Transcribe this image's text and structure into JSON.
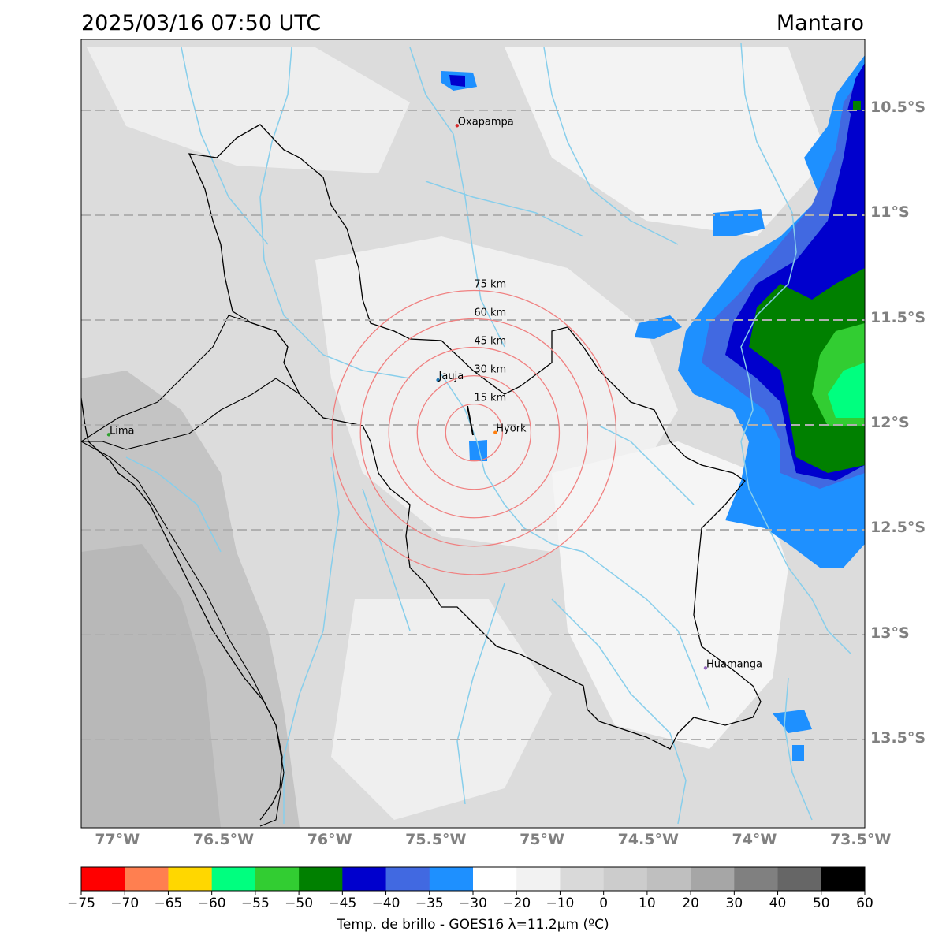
{
  "header": {
    "datetime": "2025/03/16 07:50 UTC",
    "region": "Mantaro"
  },
  "map": {
    "projection": "PlateCarree",
    "extent_lon": [
      -77.17,
      -73.48
    ],
    "extent_lat": [
      -13.92,
      -10.17
    ],
    "lat_gridlines": [
      -10.5,
      -11,
      -11.5,
      -12,
      -12.5,
      -13,
      -13.5
    ],
    "lat_labels": [
      "10.5°S",
      "11°S",
      "11.5°S",
      "12°S",
      "12.5°S",
      "13°S",
      "13.5°S"
    ],
    "lon_ticks": [
      -77,
      -76.5,
      -76,
      -75.5,
      -75,
      -74.5,
      -74,
      -73.5
    ],
    "lon_labels": [
      "77°W",
      "76.5°W",
      "76°W",
      "75.5°W",
      "75°W",
      "74.5°W",
      "74°W",
      "73.5°W"
    ],
    "gridline_style": "dashed gray"
  },
  "cities": [
    {
      "name": "Oxapampa",
      "lon": -75.4,
      "lat": -10.58,
      "color": "#d62728"
    },
    {
      "name": "Jauja",
      "lon": -75.49,
      "lat": -11.79,
      "color": "#1f77b4"
    },
    {
      "name": "Hyork",
      "lon": -75.22,
      "lat": -12.04,
      "color": "#ff7f0e"
    },
    {
      "name": "Lima",
      "lon": -77.04,
      "lat": -12.05,
      "color": "#2ca02c"
    },
    {
      "name": "Huamanga",
      "lon": -74.23,
      "lat": -13.16,
      "color": "#9467bd"
    }
  ],
  "range_rings": {
    "center_lon": -75.32,
    "center_lat": -12.04,
    "radii_km": [
      15,
      30,
      45,
      60,
      75
    ],
    "labels": [
      "15 km",
      "30 km",
      "45 km",
      "60 km",
      "75 km"
    ],
    "color": "#f08080"
  },
  "colorbar": {
    "ticks": [
      "−75",
      "−70",
      "−65",
      "−60",
      "−55",
      "−50",
      "−45",
      "−40",
      "−35",
      "−30",
      "−20",
      "−10",
      "0",
      "10",
      "20",
      "30",
      "40",
      "50",
      "60"
    ],
    "colors": [
      "#ff0000",
      "#ff7f50",
      "#ffd700",
      "#00ff7f",
      "#32cd32",
      "#008000",
      "#0000cd",
      "#4169e1",
      "#1e90ff",
      "#ffffff",
      "#f2f2f2",
      "#d9d9d9",
      "#cccccc",
      "#bfbfbf",
      "#a6a6a6",
      "#808080",
      "#666666",
      "#000000"
    ],
    "label": "Temp. de brillo - GOES16 λ=11.2μm (ºC)"
  }
}
